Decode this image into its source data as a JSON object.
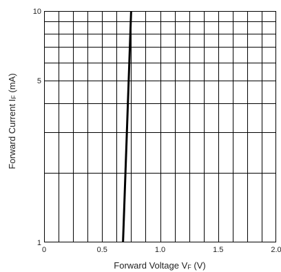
{
  "chart_data": {
    "type": "line",
    "title": "",
    "xlabel": {
      "prefix": "Forward Voltage  V",
      "subscript": "F",
      "suffix": " (V)"
    },
    "ylabel": {
      "prefix": "Forward Current  I",
      "subscript": "F",
      "suffix": " (mA)"
    },
    "xlim": [
      0,
      2.0
    ],
    "ylim": [
      1,
      10
    ],
    "yscale": "log",
    "grid": true,
    "x_ticks": [
      {
        "value": 0,
        "label": "0"
      },
      {
        "value": 0.5,
        "label": "0.5"
      },
      {
        "value": 1.0,
        "label": "1.0"
      },
      {
        "value": 1.5,
        "label": "1.5"
      },
      {
        "value": 2.0,
        "label": "2.0"
      }
    ],
    "y_ticks": [
      {
        "value": 1,
        "label": "1"
      },
      {
        "value": 5,
        "label": "5"
      },
      {
        "value": 10,
        "label": "10"
      }
    ],
    "series": [
      {
        "x": [
          0.68,
          0.75
        ],
        "y": [
          1,
          10
        ],
        "color": "#000000"
      }
    ]
  }
}
